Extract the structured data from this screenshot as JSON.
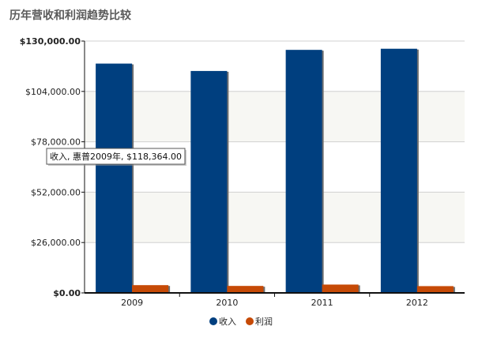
{
  "title": "历年营收和利润趋势比较",
  "tooltip": "收入, 惠普2009年, $118,364.00",
  "colors": {
    "revenue": "#003f7f",
    "profit": "#c64a06",
    "grid": "#d0d0d0",
    "band": "#f7f7f3",
    "axis": "#111111"
  },
  "chart_data": {
    "type": "bar",
    "categories": [
      "2009",
      "2010",
      "2011",
      "2012"
    ],
    "series": [
      {
        "name": "收入",
        "values": [
          118364,
          114552,
          125448,
          126033
        ]
      },
      {
        "name": "利润",
        "values": [
          4000,
          3600,
          4300,
          3500
        ]
      }
    ],
    "ylim": [
      0,
      130000
    ],
    "yticks": [
      0,
      26000,
      52000,
      78000,
      104000,
      130000
    ],
    "ytick_labels": [
      "$0.00",
      "$26,000.00",
      "$52,000.00",
      "$78,000.00",
      "$104,000.00",
      "$130,000.00"
    ],
    "grid": true,
    "legend": "bottom-center",
    "xlabel": "",
    "ylabel": ""
  }
}
